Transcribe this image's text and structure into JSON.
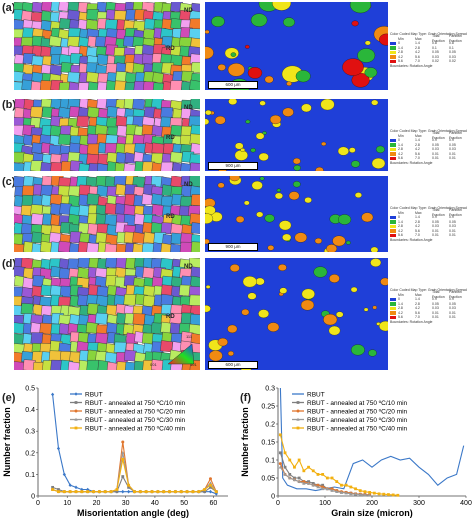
{
  "panels": [
    {
      "label": "(a)",
      "nd": "ND",
      "rd": "RD",
      "scale": "600 μm",
      "legend": {
        "title": "Color Coded Map Type: Grain Orientation Spread",
        "headers": [
          "Min",
          "Max",
          "Total Fraction",
          "Partition Fraction"
        ],
        "rows": [
          [
            "0",
            "1.4",
            "0.8",
            "0.8"
          ],
          [
            "1.4",
            "2.8",
            "0.1",
            "0.1"
          ],
          [
            "2.8",
            "4.2",
            "0.05",
            "0.05"
          ],
          [
            "4.2",
            "5.6",
            "0.03",
            "0.03"
          ],
          [
            "5.6",
            "7.0",
            "0.02",
            "0.02"
          ]
        ],
        "boundary": "Boundaries: Rotation Angle"
      },
      "colors": [
        "#1f3fd8",
        "#2ab63a",
        "#f0e51a",
        "#f08a12",
        "#e01010"
      ]
    },
    {
      "label": "(b)",
      "nd": "ND",
      "rd": "RD",
      "scale": "900 μm",
      "legend": {
        "title": "Color Coded Map Type: Grain Orientation Spread",
        "headers": [
          "Min",
          "Max",
          "Total Fraction",
          "Partition Fraction"
        ],
        "rows": [
          [
            "0",
            "1.4",
            "0.9",
            "0.9"
          ],
          [
            "1.4",
            "2.8",
            "0.05",
            "0.05"
          ],
          [
            "2.8",
            "4.2",
            "0.03",
            "0.03"
          ],
          [
            "4.2",
            "5.6",
            "0.01",
            "0.01"
          ],
          [
            "5.6",
            "7.0",
            "0.01",
            "0.01"
          ]
        ],
        "boundary": "Boundaries: Rotation Angle"
      },
      "colors": [
        "#1f3fd8",
        "#2ab63a",
        "#f0e51a",
        "#f08a12",
        "#e01010"
      ]
    },
    {
      "label": "(c)",
      "nd": "ND",
      "rd": "RD",
      "scale": "900 μm",
      "legend": {
        "title": "Color Coded Map Type: Grain Orientation Spread",
        "headers": [
          "Min",
          "Max",
          "Total Fraction",
          "Partition Fraction"
        ],
        "rows": [
          [
            "0",
            "1.4",
            "0.9",
            "0.9"
          ],
          [
            "1.4",
            "2.8",
            "0.05",
            "0.05"
          ],
          [
            "2.8",
            "4.2",
            "0.03",
            "0.03"
          ],
          [
            "4.2",
            "5.6",
            "0.01",
            "0.01"
          ],
          [
            "5.6",
            "7.0",
            "0.01",
            "0.01"
          ]
        ],
        "boundary": "Boundaries: Rotation Angle"
      },
      "colors": [
        "#1f3fd8",
        "#2ab63a",
        "#f0e51a",
        "#f08a12",
        "#e01010"
      ]
    },
    {
      "label": "(d)",
      "nd": "ND",
      "rd": "RD",
      "scale": "600 μm",
      "legend": {
        "title": "Color Coded Map Type: Grain Orientation Spread",
        "headers": [
          "Min",
          "Max",
          "Total Fraction",
          "Partition Fraction"
        ],
        "rows": [
          [
            "0",
            "1.4",
            "0.9",
            "0.9"
          ],
          [
            "1.4",
            "2.8",
            "0.05",
            "0.05"
          ],
          [
            "2.8",
            "4.2",
            "0.03",
            "0.03"
          ],
          [
            "4.2",
            "5.6",
            "0.01",
            "0.01"
          ],
          [
            "5.6",
            "7.0",
            "0.01",
            "0.01"
          ]
        ],
        "boundary": "Boundaries: Rotation Angle"
      },
      "colors": [
        "#1f3fd8",
        "#2ab63a",
        "#f0e51a",
        "#f08a12",
        "#e01010"
      ]
    }
  ],
  "ipf_key": {
    "corners": [
      "001",
      "101",
      "111"
    ]
  },
  "chart_data": [
    {
      "id": "e",
      "label": "(e)",
      "type": "line",
      "xlabel": "Misorientation angle (deg)",
      "ylabel": "Number fraction",
      "xlim": [
        0,
        65
      ],
      "ylim": [
        0,
        0.5
      ],
      "xticks": [
        0,
        10,
        20,
        30,
        40,
        50,
        60
      ],
      "yticks": [
        0,
        0.1,
        0.2,
        0.3,
        0.4,
        0.5
      ],
      "yticklabels": [
        "0",
        "0.1",
        "0.2",
        "0.3",
        "0.4",
        "0.5"
      ],
      "x": [
        5,
        7,
        9,
        11,
        13,
        15,
        17,
        19,
        21,
        23,
        25,
        27,
        29,
        31,
        33,
        35,
        37,
        39,
        41,
        43,
        45,
        47,
        49,
        51,
        53,
        55,
        57,
        59,
        61
      ],
      "series": [
        {
          "name": "RBUT",
          "color": "#3b78c8",
          "marker": "diamond",
          "values": [
            0.47,
            0.22,
            0.1,
            0.05,
            0.04,
            0.03,
            0.03,
            0.02,
            0.02,
            0.02,
            0.02,
            0.02,
            0.02,
            0.02,
            0.02,
            0.02,
            0.02,
            0.02,
            0.02,
            0.02,
            0.02,
            0.02,
            0.02,
            0.02,
            0.02,
            0.02,
            0.02,
            0.02,
            0.01
          ]
        },
        {
          "name": "RBUT - annealed at 750 ºC/10 min",
          "color": "#7f7f7f",
          "marker": "square",
          "values": [
            0.04,
            0.03,
            0.02,
            0.02,
            0.02,
            0.02,
            0.02,
            0.02,
            0.02,
            0.02,
            0.02,
            0.02,
            0.09,
            0.04,
            0.02,
            0.02,
            0.02,
            0.02,
            0.02,
            0.02,
            0.02,
            0.02,
            0.02,
            0.02,
            0.02,
            0.02,
            0.02,
            0.04,
            0.02
          ]
        },
        {
          "name": "RBUT - annealed at 750 ºC/20 min",
          "color": "#e0762e",
          "marker": "circle",
          "values": [
            0.03,
            0.02,
            0.02,
            0.02,
            0.02,
            0.02,
            0.02,
            0.02,
            0.02,
            0.02,
            0.02,
            0.03,
            0.25,
            0.05,
            0.02,
            0.02,
            0.02,
            0.02,
            0.02,
            0.02,
            0.02,
            0.02,
            0.02,
            0.02,
            0.02,
            0.02,
            0.03,
            0.08,
            0.02
          ]
        },
        {
          "name": "RBUT - annealed at 750 ºC/30 min",
          "color": "#9a9a9a",
          "marker": "triangle",
          "values": [
            0.03,
            0.02,
            0.02,
            0.02,
            0.02,
            0.02,
            0.02,
            0.02,
            0.02,
            0.02,
            0.02,
            0.03,
            0.2,
            0.05,
            0.02,
            0.02,
            0.02,
            0.02,
            0.02,
            0.02,
            0.02,
            0.02,
            0.02,
            0.02,
            0.02,
            0.02,
            0.03,
            0.06,
            0.02
          ]
        },
        {
          "name": "RBUT - annealed at 750 ºC/40 min",
          "color": "#f2b010",
          "marker": "square",
          "values": [
            0.03,
            0.02,
            0.02,
            0.02,
            0.02,
            0.02,
            0.02,
            0.02,
            0.02,
            0.02,
            0.02,
            0.03,
            0.17,
            0.05,
            0.02,
            0.02,
            0.02,
            0.02,
            0.02,
            0.02,
            0.02,
            0.02,
            0.02,
            0.02,
            0.02,
            0.02,
            0.03,
            0.05,
            0.02
          ]
        }
      ]
    },
    {
      "id": "f",
      "label": "(f)",
      "type": "line",
      "xlabel": "Grain size (micron)",
      "ylabel": "Number fraction",
      "xlim": [
        0,
        400
      ],
      "ylim": [
        0,
        0.3
      ],
      "xticks": [
        0,
        100,
        200,
        300,
        400
      ],
      "yticks": [
        0,
        0.05,
        0.1,
        0.15,
        0.2,
        0.25,
        0.3
      ],
      "yticklabels": [
        "0",
        "0.05",
        "0.1",
        "0.15",
        "0.2",
        "0.25",
        "0.3"
      ],
      "series": [
        {
          "name": "RBUT",
          "color": "#3b78c8",
          "marker": "none",
          "x": [
            5,
            10,
            20,
            40,
            60,
            80,
            100,
            120,
            140,
            160,
            180,
            200,
            220,
            240,
            260,
            280,
            300,
            320,
            340,
            360,
            380,
            395
          ],
          "values": [
            0.3,
            0.05,
            0.03,
            0.02,
            0.02,
            0.015,
            0.02,
            0.025,
            0.02,
            0.09,
            0.1,
            0.08,
            0.1,
            0.11,
            0.1,
            0.105,
            0.08,
            0.06,
            0.03,
            0.05,
            0.06,
            0.14
          ]
        },
        {
          "name": "RBUT - annealed at 750 ºC/10 min",
          "color": "#7f7f7f",
          "marker": "square",
          "x": [
            5,
            15,
            25,
            35,
            45,
            55,
            65,
            75,
            85,
            95,
            105,
            115,
            125,
            135,
            145,
            155,
            165,
            175,
            185,
            195
          ],
          "values": [
            0.12,
            0.08,
            0.06,
            0.05,
            0.05,
            0.04,
            0.04,
            0.035,
            0.03,
            0.03,
            0.02,
            0.02,
            0.015,
            0.01,
            0.01,
            0.008,
            0.006,
            0.005,
            0.004,
            0.003
          ]
        },
        {
          "name": "RBUT - annealed at 750 ºC/20 min",
          "color": "#e0762e",
          "marker": "circle",
          "x": [
            5,
            15,
            25,
            35,
            45,
            55,
            65,
            75,
            85,
            95,
            105,
            115,
            125,
            135,
            145,
            155,
            165,
            175,
            185,
            195
          ],
          "values": [
            0.09,
            0.06,
            0.05,
            0.045,
            0.04,
            0.04,
            0.035,
            0.03,
            0.03,
            0.025,
            0.02,
            0.02,
            0.015,
            0.012,
            0.01,
            0.008,
            0.006,
            0.005,
            0.004,
            0.003
          ]
        },
        {
          "name": "RBUT - annealed at 750 ºC/30 min",
          "color": "#9a9a9a",
          "marker": "triangle",
          "x": [
            5,
            15,
            25,
            35,
            45,
            55,
            65,
            75,
            85,
            95,
            105,
            115,
            125,
            135,
            145,
            155,
            165,
            175,
            185,
            195
          ],
          "values": [
            0.08,
            0.06,
            0.05,
            0.045,
            0.04,
            0.035,
            0.035,
            0.03,
            0.025,
            0.02,
            0.02,
            0.015,
            0.012,
            0.01,
            0.008,
            0.006,
            0.005,
            0.004,
            0.003,
            0.002
          ]
        },
        {
          "name": "RBUT - annealed at 750 ºC/40 min",
          "color": "#f2b010",
          "marker": "square",
          "x": [
            5,
            15,
            25,
            35,
            45,
            55,
            65,
            75,
            85,
            95,
            105,
            115,
            125,
            135,
            145,
            155,
            165,
            175,
            185,
            195,
            205,
            215,
            225,
            235,
            245,
            255
          ],
          "values": [
            0.17,
            0.12,
            0.1,
            0.08,
            0.1,
            0.07,
            0.08,
            0.07,
            0.06,
            0.06,
            0.05,
            0.05,
            0.04,
            0.03,
            0.03,
            0.025,
            0.02,
            0.015,
            0.012,
            0.01,
            0.008,
            0.006,
            0.005,
            0.004,
            0.003,
            0.002
          ]
        }
      ]
    }
  ]
}
